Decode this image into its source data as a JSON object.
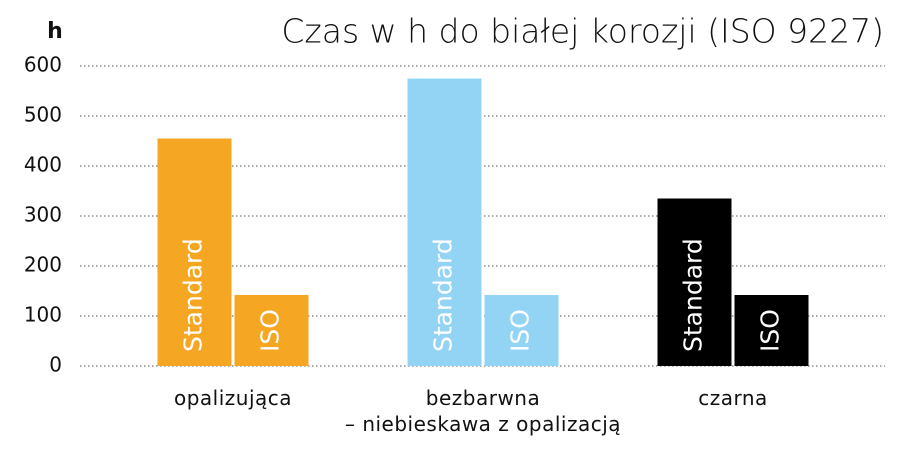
{
  "chart_data": {
    "type": "bar",
    "title": "Czas w h do białej korozji (ISO 9227)",
    "y_label": "h",
    "categories": [
      "opalizująca",
      "bezbarwna\n– niebieskawa z opalizacją",
      "czarna"
    ],
    "category_colors": [
      "#f5a623",
      "#93d4f5",
      "#000000"
    ],
    "series": [
      {
        "name": "Standard",
        "values": [
          455,
          575,
          335
        ]
      },
      {
        "name": "ISO",
        "values": [
          142,
          142,
          142
        ]
      }
    ],
    "ylim": [
      0,
      600
    ],
    "yticks": [
      0,
      100,
      200,
      300,
      400,
      500,
      600
    ],
    "grid": true
  }
}
